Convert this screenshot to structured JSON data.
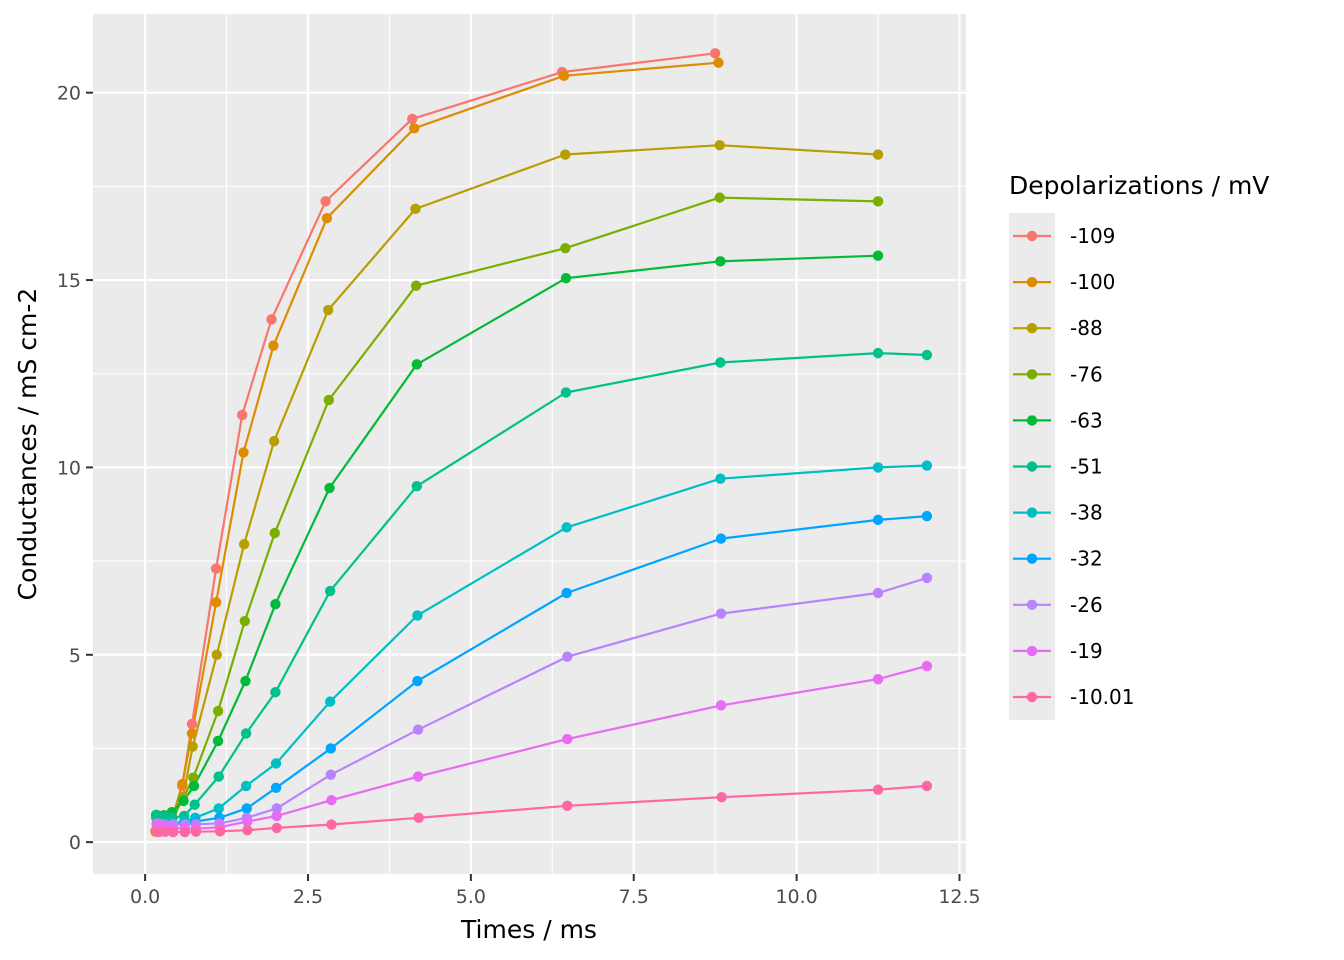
{
  "chart_data": {
    "type": "line",
    "xlabel": "Times / ms",
    "ylabel": "Conductances / mS cm-2",
    "xlim": [
      -0.8,
      12.6
    ],
    "ylim": [
      -0.85,
      22.1
    ],
    "x_major_ticks": [
      0,
      2.5,
      5,
      7.5,
      10,
      12.5
    ],
    "x_tick_labels": [
      "0.0",
      "2.5",
      "5.0",
      "7.5",
      "10.0",
      "12.5"
    ],
    "x_minor_ticks": [
      1.25,
      3.75,
      6.25,
      8.75,
      11.25
    ],
    "y_major_ticks": [
      0,
      5,
      10,
      15,
      20
    ],
    "y_tick_labels": [
      "0",
      "5",
      "10",
      "15",
      "20"
    ],
    "y_minor_ticks": [
      2.5,
      7.5,
      12.5,
      17.5
    ],
    "grid": true,
    "legend": {
      "title": "Depolarizations / mV",
      "position": "right"
    },
    "colors": {
      "panel_background": "#EBEBEB",
      "grid_line": "#FFFFFF",
      "tick_mark": "#333333",
      "tick_text": "#4D4D4D",
      "legend_key_background": "#EBEBEB"
    },
    "series": [
      {
        "name": "-109",
        "color": "#F8766D",
        "x": [
          0.16,
          0.2,
          0.26,
          0.38,
          0.57,
          0.72,
          1.09,
          1.49,
          1.94,
          2.77,
          4.1,
          6.4,
          8.75
        ],
        "y": [
          0.3,
          0.28,
          0.32,
          0.45,
          1.5,
          3.15,
          7.3,
          11.4,
          13.95,
          17.1,
          19.3,
          20.55,
          21.05
        ]
      },
      {
        "name": "-100",
        "color": "#DE8C00",
        "x": [
          0.16,
          0.2,
          0.26,
          0.38,
          0.57,
          0.72,
          1.09,
          1.51,
          1.97,
          2.79,
          4.13,
          6.43,
          8.8
        ],
        "y": [
          0.28,
          0.27,
          0.3,
          0.42,
          1.55,
          2.9,
          6.4,
          10.4,
          13.25,
          16.65,
          19.05,
          20.45,
          20.8
        ]
      },
      {
        "name": "-88",
        "color": "#B79F00",
        "x": [
          0.17,
          0.21,
          0.28,
          0.4,
          0.58,
          0.73,
          1.1,
          1.52,
          1.98,
          2.81,
          4.15,
          6.45,
          8.82,
          11.25
        ],
        "y": [
          0.3,
          0.29,
          0.34,
          0.5,
          1.2,
          2.55,
          5.0,
          7.95,
          10.7,
          14.2,
          16.9,
          18.35,
          18.6,
          18.35
        ]
      },
      {
        "name": "-76",
        "color": "#7CAE00",
        "x": [
          0.17,
          0.22,
          0.29,
          0.41,
          0.58,
          0.74,
          1.12,
          1.53,
          1.99,
          2.82,
          4.16,
          6.45,
          8.82,
          11.25
        ],
        "y": [
          0.65,
          0.6,
          0.68,
          0.78,
          1.15,
          1.72,
          3.5,
          5.9,
          8.25,
          11.8,
          14.85,
          15.85,
          17.2,
          17.1
        ]
      },
      {
        "name": "-63",
        "color": "#00BA38",
        "x": [
          0.17,
          0.22,
          0.29,
          0.41,
          0.59,
          0.75,
          1.12,
          1.54,
          2.0,
          2.83,
          4.17,
          6.46,
          8.83,
          11.25
        ],
        "y": [
          0.72,
          0.68,
          0.72,
          0.8,
          1.1,
          1.5,
          2.7,
          4.3,
          6.35,
          9.45,
          12.75,
          15.05,
          15.5,
          15.65
        ]
      },
      {
        "name": "-51",
        "color": "#00C08B",
        "x": [
          0.17,
          0.22,
          0.3,
          0.42,
          0.6,
          0.76,
          1.13,
          1.55,
          2.0,
          2.84,
          4.17,
          6.46,
          8.83,
          11.25,
          12.0
        ],
        "y": [
          0.73,
          0.7,
          0.7,
          0.65,
          0.7,
          1.0,
          1.75,
          2.9,
          4.0,
          6.7,
          9.5,
          12.0,
          12.8,
          13.05,
          13.0
        ]
      },
      {
        "name": "-38",
        "color": "#00BFC4",
        "x": [
          0.18,
          0.23,
          0.3,
          0.42,
          0.6,
          0.77,
          1.13,
          1.55,
          2.01,
          2.84,
          4.18,
          6.47,
          8.83,
          11.25,
          12.0
        ],
        "y": [
          0.5,
          0.48,
          0.48,
          0.5,
          0.55,
          0.65,
          0.9,
          1.5,
          2.1,
          3.75,
          6.05,
          8.4,
          9.7,
          10.0,
          10.05
        ]
      },
      {
        "name": "-32",
        "color": "#00A5FF",
        "x": [
          0.18,
          0.23,
          0.3,
          0.42,
          0.6,
          0.77,
          1.14,
          1.56,
          2.01,
          2.85,
          4.18,
          6.47,
          8.84,
          11.25,
          12.0
        ],
        "y": [
          0.5,
          0.48,
          0.48,
          0.48,
          0.5,
          0.55,
          0.65,
          0.9,
          1.45,
          2.5,
          4.3,
          6.65,
          8.1,
          8.6,
          8.7
        ]
      },
      {
        "name": "-26",
        "color": "#B983FF",
        "x": [
          0.18,
          0.23,
          0.3,
          0.43,
          0.61,
          0.78,
          1.14,
          1.56,
          2.02,
          2.85,
          4.19,
          6.48,
          8.84,
          11.25,
          12.0
        ],
        "y": [
          0.5,
          0.49,
          0.48,
          0.48,
          0.48,
          0.48,
          0.5,
          0.65,
          0.9,
          1.8,
          3.0,
          4.95,
          6.1,
          6.65,
          7.05
        ]
      },
      {
        "name": "-19",
        "color": "#E76BF3",
        "x": [
          0.18,
          0.23,
          0.3,
          0.43,
          0.61,
          0.78,
          1.15,
          1.57,
          2.02,
          2.86,
          4.19,
          6.48,
          8.84,
          11.25,
          12.0
        ],
        "y": [
          0.45,
          0.42,
          0.4,
          0.38,
          0.36,
          0.36,
          0.4,
          0.55,
          0.7,
          1.12,
          1.75,
          2.75,
          3.65,
          4.35,
          4.7
        ]
      },
      {
        "name": "-10.01",
        "color": "#FF67A4",
        "x": [
          0.18,
          0.23,
          0.31,
          0.43,
          0.61,
          0.78,
          1.15,
          1.57,
          2.02,
          2.86,
          4.2,
          6.48,
          8.85,
          11.25,
          12.0
        ],
        "y": [
          0.28,
          0.28,
          0.28,
          0.27,
          0.27,
          0.28,
          0.29,
          0.32,
          0.38,
          0.47,
          0.65,
          0.97,
          1.2,
          1.4,
          1.5
        ]
      }
    ]
  }
}
